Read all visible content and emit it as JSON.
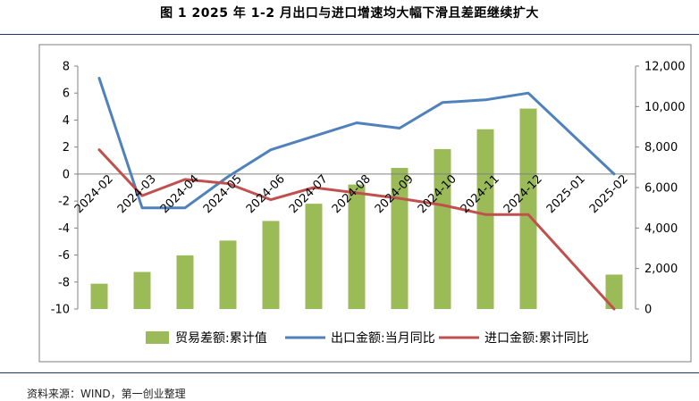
{
  "figure": {
    "title": "图 1    2025 年 1-2 月出口与进口增速均大幅下滑且差距继续扩大",
    "source": "资料来源：WIND，第一创业整理"
  },
  "colors": {
    "bar": "#9bbb59",
    "export_line": "#4f81bd",
    "import_line": "#c0504d",
    "rule": "#1f3864",
    "plot_border": "#7f7f7f"
  },
  "chart_data": {
    "type": "bar",
    "title": "2025 年 1-2 月出口与进口增速均大幅下滑且差距继续扩大",
    "categories": [
      "2024-02",
      "2024-03",
      "2024-04",
      "2024-05",
      "2024-06",
      "2024-07",
      "2024-08",
      "2024-09",
      "2024-10",
      "2024-11",
      "2024-12",
      "2025-01",
      "2025-02"
    ],
    "left_axis": {
      "min": -10,
      "max": 8,
      "step": 2,
      "ticks": [
        "8",
        "6",
        "4",
        "2",
        "0",
        "-2",
        "-4",
        "-6",
        "-8",
        "-10"
      ]
    },
    "right_axis": {
      "min": 0,
      "max": 12000,
      "step": 2000,
      "ticks": [
        "12,000",
        "10,000",
        "8,000",
        "6,000",
        "4,000",
        "2,000",
        "0"
      ]
    },
    "series": [
      {
        "name": "贸易差额:累计值",
        "type": "bar",
        "axis": "right",
        "values": [
          1250,
          1830,
          2650,
          3380,
          4350,
          5200,
          6150,
          6970,
          7900,
          8880,
          9900,
          null,
          1700
        ]
      },
      {
        "name": "出口金额:当月同比",
        "type": "line",
        "axis": "left",
        "values": [
          7.1,
          -2.5,
          -2.5,
          -0.2,
          1.8,
          2.8,
          3.8,
          3.4,
          5.3,
          5.5,
          6.0,
          null,
          0.0
        ]
      },
      {
        "name": "进口金额:累计同比",
        "type": "line",
        "axis": "left",
        "values": [
          1.8,
          -1.6,
          -0.4,
          -0.7,
          -1.9,
          -1.0,
          -1.4,
          -1.8,
          -2.3,
          -3.0,
          -3.0,
          null,
          -10.0
        ]
      }
    ],
    "legend": [
      "贸易差额:累计值",
      "出口金额:当月同比",
      "进口金额:累计同比"
    ],
    "legend_position": "bottom",
    "grid": false
  }
}
